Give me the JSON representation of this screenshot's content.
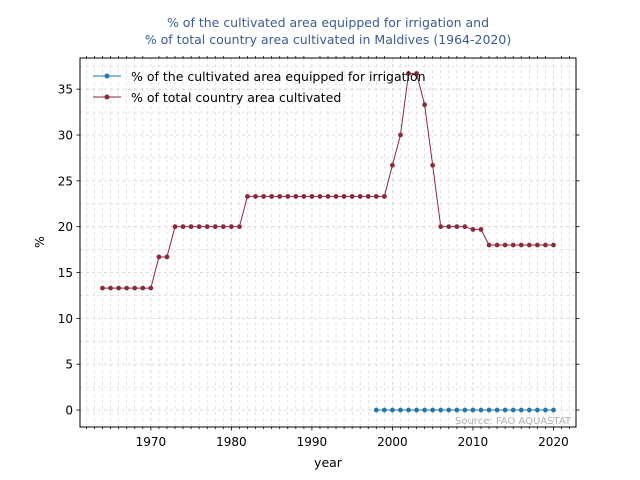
{
  "chart_data": {
    "type": "line",
    "title_line1": "% of the cultivated area equipped for irrigation and",
    "title_line2": "% of total country area cultivated in Maldives (1964-2020)",
    "xlabel": "year",
    "ylabel": "%",
    "xlim": [
      1961.2,
      2022.8
    ],
    "ylim": [
      -1.85,
      38.4
    ],
    "xticks": [
      1970,
      1980,
      1990,
      2000,
      2010,
      2020
    ],
    "yticks": [
      0,
      5,
      10,
      15,
      20,
      25,
      30,
      35
    ],
    "grid": true,
    "legend_position": "top-left",
    "source": "Source: FAO AQUASTAT",
    "series": [
      {
        "name": "% of the cultivated area equipped for irrigation",
        "color": "#1f77b4",
        "x": [
          1998,
          1999,
          2000,
          2001,
          2002,
          2003,
          2004,
          2005,
          2006,
          2007,
          2008,
          2009,
          2010,
          2011,
          2012,
          2013,
          2014,
          2015,
          2016,
          2017,
          2018,
          2019,
          2020
        ],
        "y": [
          0,
          0,
          0,
          0,
          0,
          0,
          0,
          0,
          0,
          0,
          0,
          0,
          0,
          0,
          0,
          0,
          0,
          0,
          0,
          0,
          0,
          0,
          0
        ]
      },
      {
        "name": "% of total country area cultivated",
        "color": "#8b2a3a",
        "x": [
          1964,
          1965,
          1966,
          1967,
          1968,
          1969,
          1970,
          1971,
          1972,
          1973,
          1974,
          1975,
          1976,
          1977,
          1978,
          1979,
          1980,
          1981,
          1982,
          1983,
          1984,
          1985,
          1986,
          1987,
          1988,
          1989,
          1990,
          1991,
          1992,
          1993,
          1994,
          1995,
          1996,
          1997,
          1998,
          1999,
          2000,
          2001,
          2002,
          2003,
          2004,
          2005,
          2006,
          2007,
          2008,
          2009,
          2010,
          2011,
          2012,
          2013,
          2014,
          2015,
          2016,
          2017,
          2018,
          2019,
          2020
        ],
        "y": [
          13.3,
          13.3,
          13.3,
          13.3,
          13.3,
          13.3,
          13.3,
          16.7,
          16.7,
          20,
          20,
          20,
          20,
          20,
          20,
          20,
          20,
          20,
          23.3,
          23.3,
          23.3,
          23.3,
          23.3,
          23.3,
          23.3,
          23.3,
          23.3,
          23.3,
          23.3,
          23.3,
          23.3,
          23.3,
          23.3,
          23.3,
          23.3,
          23.3,
          26.7,
          30,
          36.7,
          36.7,
          33.3,
          26.7,
          20,
          20,
          20,
          20,
          19.7,
          19.7,
          18,
          18,
          18,
          18,
          18,
          18,
          18,
          18,
          18
        ]
      }
    ]
  }
}
